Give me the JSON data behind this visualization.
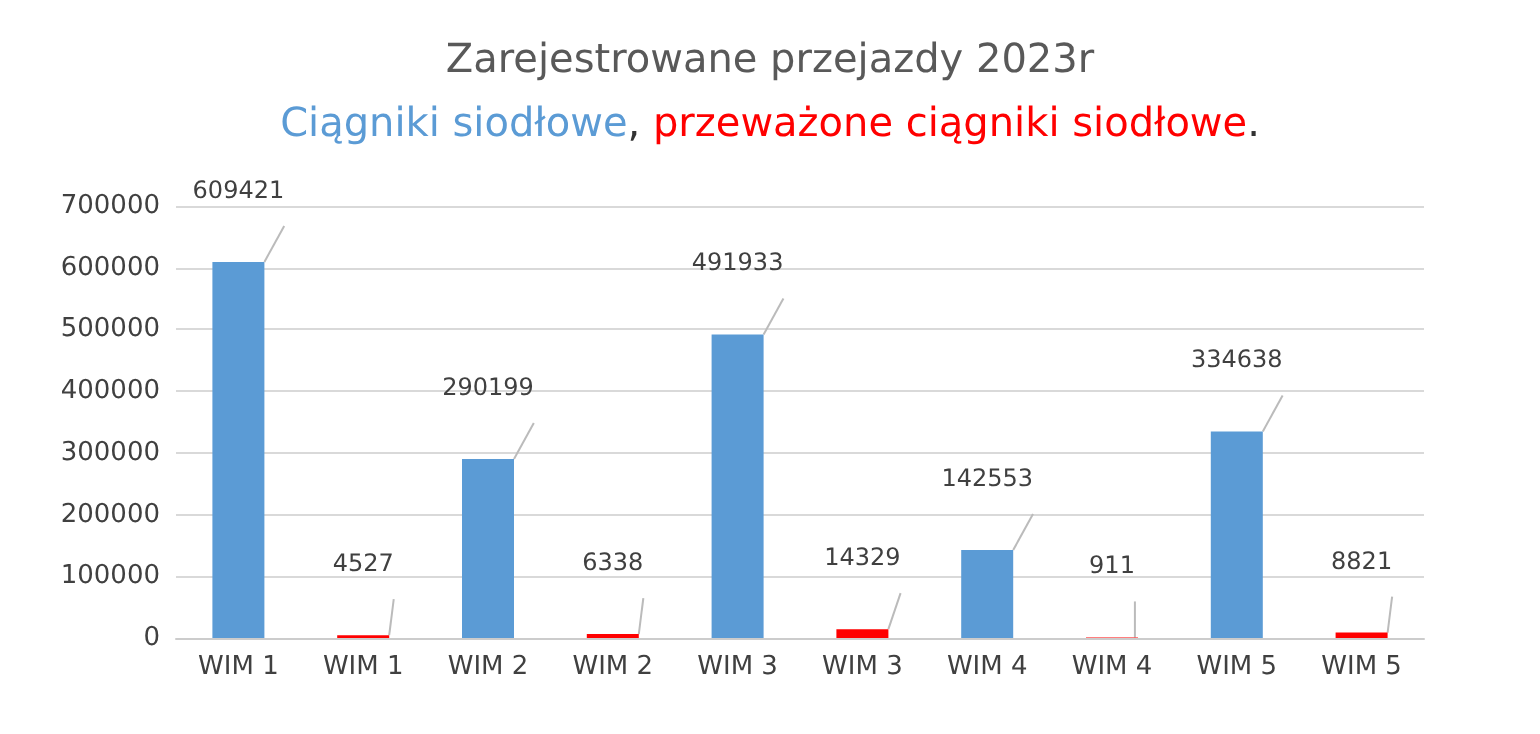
{
  "chart_data": {
    "type": "bar",
    "title": "Zarejestrowane przejazdy 2023r",
    "categories": [
      "WIM 1",
      "WIM 1",
      "WIM 2",
      "WIM 2",
      "WIM 3",
      "WIM 3",
      "WIM 4",
      "WIM 4",
      "WIM 5",
      "WIM 5"
    ],
    "series": [
      {
        "name": "Ciągniki siodłowe",
        "color": "#5b9bd5",
        "values": [
          609421,
          null,
          290199,
          null,
          491933,
          null,
          142553,
          null,
          334638,
          null
        ]
      },
      {
        "name": "przeważone ciągniki siodłowe",
        "color": "#ff0000",
        "values": [
          null,
          4527,
          null,
          6338,
          null,
          14329,
          null,
          911,
          null,
          8821
        ]
      }
    ],
    "ylim": [
      0,
      700000
    ],
    "yticks": [
      0,
      100000,
      200000,
      300000,
      400000,
      500000,
      600000,
      700000
    ],
    "annotations": [
      ", ",
      "."
    ],
    "grid": "y",
    "legend": "top",
    "data_labels": true
  }
}
